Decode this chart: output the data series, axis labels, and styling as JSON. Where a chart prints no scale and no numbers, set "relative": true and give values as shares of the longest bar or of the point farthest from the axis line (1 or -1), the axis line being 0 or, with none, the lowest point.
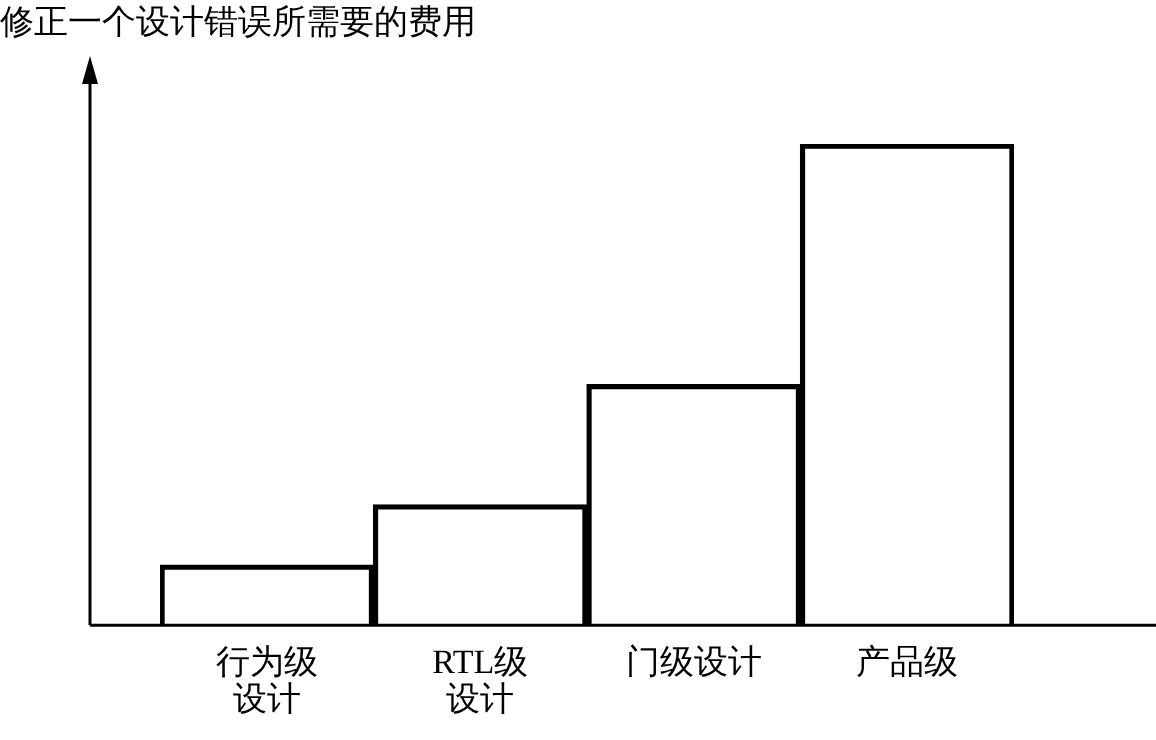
{
  "chart_data": {
    "type": "bar",
    "ylabel": "修正一个设计错误所需要的费用",
    "categories": [
      "行为级设计",
      "RTL级设计",
      "门级设计",
      "产品级"
    ],
    "values": [
      0.125,
      0.25,
      0.5,
      1
    ],
    "color": "#000000",
    "relative": true
  }
}
